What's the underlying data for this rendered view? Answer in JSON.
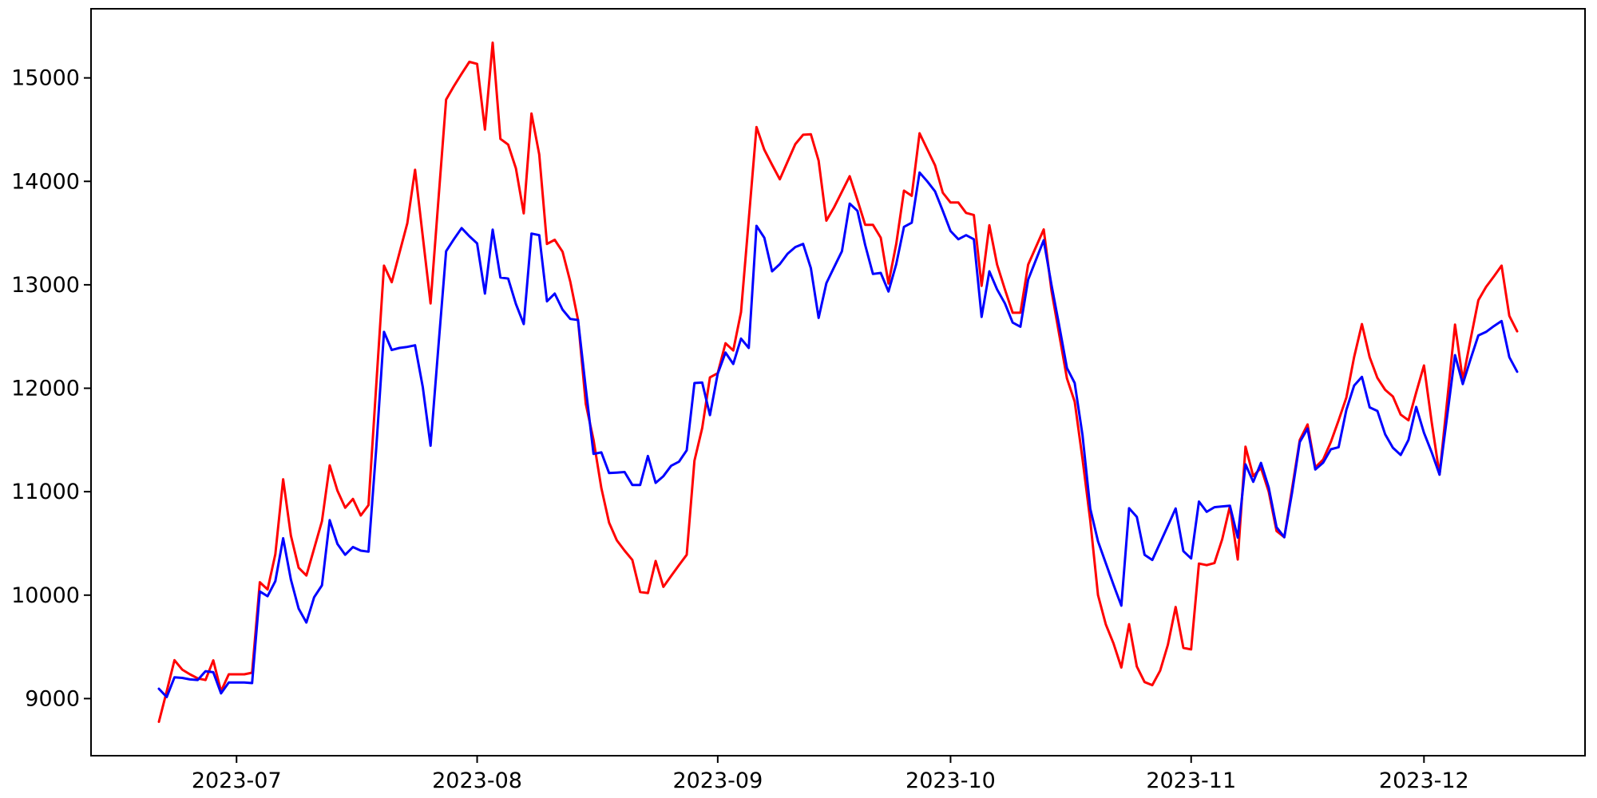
{
  "figure": {
    "background_color": "#ffffff",
    "axis_color": "#000000",
    "title": ""
  },
  "chart_data": {
    "type": "line",
    "title": "",
    "xlabel": "",
    "ylabel": "",
    "grid": false,
    "legend_position": "none",
    "start_date": "2023-06-21",
    "end_date": "2023-12-13",
    "x_tick_labels": [
      "2023-07",
      "2023-08",
      "2023-09",
      "2023-10",
      "2023-11",
      "2023-12"
    ],
    "y_ticks": [
      9000,
      10000,
      11000,
      12000,
      13000,
      14000,
      15000
    ],
    "y_tick_labels": [
      "9000",
      "10000",
      "11000",
      "12000",
      "13000",
      "14000",
      "15000"
    ],
    "ylim": [
      8448,
      15668
    ],
    "x_margin_fraction": 0.05,
    "y_margin_fraction": 0.05,
    "series": [
      {
        "name": "red",
        "color": "#ff0000",
        "values": [
          8776,
          9070,
          9371,
          9280,
          9235,
          9195,
          9180,
          9370,
          9070,
          9235,
          9235,
          9235,
          9250,
          10125,
          10055,
          10395,
          11120,
          10575,
          10265,
          10190,
          10450,
          10715,
          11255,
          11010,
          10845,
          10930,
          10770,
          10870,
          12030,
          13185,
          13025,
          13310,
          13595,
          14112,
          13465,
          12820,
          13805,
          14790,
          14920,
          15040,
          15155,
          15135,
          14500,
          15340,
          14410,
          14355,
          14125,
          13690,
          14655,
          14260,
          13395,
          13435,
          13320,
          13030,
          12660,
          11850,
          11500,
          11035,
          10700,
          10530,
          10430,
          10340,
          10030,
          10020,
          10330,
          10080,
          10185,
          10290,
          10390,
          11300,
          11615,
          12105,
          12145,
          12435,
          12365,
          12735,
          13630,
          14525,
          14305,
          14160,
          14020,
          14190,
          14360,
          14450,
          14455,
          14200,
          13620,
          13750,
          13900,
          14050,
          13820,
          13580,
          13580,
          13455,
          13012,
          13395,
          13910,
          13860,
          14465,
          14310,
          14155,
          13890,
          13795,
          13795,
          13695,
          13675,
          12990,
          13575,
          13195,
          12955,
          12730,
          12730,
          13195,
          13365,
          13535,
          12945,
          12520,
          12095,
          11870,
          11315,
          10720,
          10000,
          9718,
          9533,
          9300,
          9720,
          9310,
          9160,
          9130,
          9270,
          9520,
          9885,
          9490,
          9475,
          10305,
          10290,
          10310,
          10540,
          10860,
          10345,
          11435,
          11150,
          11230,
          11000,
          10620,
          10560,
          11030,
          11500,
          11650,
          11235,
          11310,
          11480,
          11690,
          11910,
          12300,
          12620,
          12300,
          12100,
          11985,
          11920,
          11745,
          11690,
          11960,
          12220,
          11670,
          11165,
          11890,
          12615,
          12080,
          12470,
          12850,
          12980,
          13080,
          13185,
          12700,
          12550
        ]
      },
      {
        "name": "blue",
        "color": "#0000ff",
        "values": [
          9095,
          9015,
          9205,
          9200,
          9185,
          9180,
          9265,
          9255,
          9050,
          9155,
          9155,
          9155,
          9150,
          10035,
          9990,
          10135,
          10550,
          10150,
          9870,
          9735,
          9980,
          10095,
          10725,
          10495,
          10390,
          10465,
          10430,
          10420,
          11420,
          12545,
          12370,
          12390,
          12400,
          12415,
          12010,
          11445,
          12390,
          13325,
          13440,
          13548,
          13470,
          13400,
          12915,
          13533,
          13070,
          13060,
          12815,
          12620,
          13495,
          13480,
          12840,
          12915,
          12760,
          12670,
          12660,
          12000,
          11365,
          11380,
          11180,
          11185,
          11190,
          11065,
          11065,
          11345,
          11085,
          11150,
          11250,
          11290,
          11400,
          12050,
          12055,
          11740,
          12140,
          12345,
          12235,
          12480,
          12390,
          13570,
          13455,
          13130,
          13200,
          13300,
          13365,
          13395,
          13160,
          12680,
          13015,
          13170,
          13325,
          13785,
          13715,
          13385,
          13105,
          13115,
          12935,
          13200,
          13560,
          13600,
          14085,
          14000,
          13903,
          13715,
          13520,
          13440,
          13480,
          13440,
          12690,
          13130,
          12955,
          12820,
          12635,
          12595,
          13050,
          13240,
          13430,
          13000,
          12605,
          12195,
          12050,
          11545,
          10835,
          10520,
          10310,
          10100,
          9898,
          10840,
          10757,
          10390,
          10340,
          10505,
          10670,
          10838,
          10425,
          10355,
          10905,
          10805,
          10850,
          10858,
          10865,
          10556,
          11264,
          11095,
          11278,
          11040,
          10656,
          10560,
          10990,
          11480,
          11610,
          11215,
          11280,
          11410,
          11430,
          11790,
          12025,
          12110,
          11815,
          11780,
          11555,
          11425,
          11355,
          11500,
          11820,
          11570,
          11380,
          11165,
          11740,
          12320,
          12040,
          12280,
          12510,
          12545,
          12600,
          12650,
          12300,
          12160
        ]
      }
    ]
  }
}
